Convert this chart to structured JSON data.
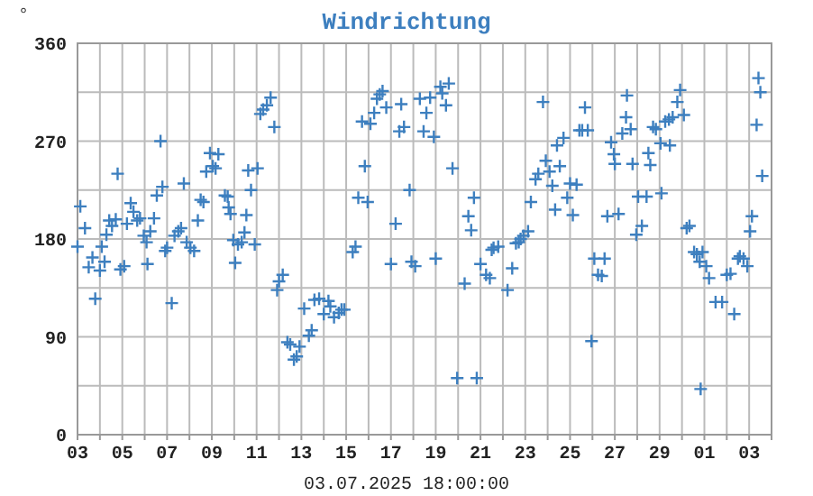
{
  "chart_data": {
    "type": "scatter",
    "title": "Windrichtung",
    "ylabel": "°",
    "annotations": [
      "03.07.2025 18:00:00"
    ],
    "marker": "cross",
    "grid": true,
    "xlim": [
      "2025-06-03",
      "2025-07-04"
    ],
    "xticks": [
      {
        "value": "2025-06-03",
        "label": "03"
      },
      {
        "value": "2025-06-04",
        "label": null
      },
      {
        "value": "2025-06-05",
        "label": "05"
      },
      {
        "value": "2025-06-06",
        "label": null
      },
      {
        "value": "2025-06-07",
        "label": "07"
      },
      {
        "value": "2025-06-08",
        "label": null
      },
      {
        "value": "2025-06-09",
        "label": "09"
      },
      {
        "value": "2025-06-10",
        "label": null
      },
      {
        "value": "2025-06-11",
        "label": "11"
      },
      {
        "value": "2025-06-12",
        "label": null
      },
      {
        "value": "2025-06-13",
        "label": "13"
      },
      {
        "value": "2025-06-14",
        "label": null
      },
      {
        "value": "2025-06-15",
        "label": "15"
      },
      {
        "value": "2025-06-16",
        "label": null
      },
      {
        "value": "2025-06-17",
        "label": "17"
      },
      {
        "value": "2025-06-18",
        "label": null
      },
      {
        "value": "2025-06-19",
        "label": "19"
      },
      {
        "value": "2025-06-20",
        "label": null
      },
      {
        "value": "2025-06-21",
        "label": "21"
      },
      {
        "value": "2025-06-22",
        "label": null
      },
      {
        "value": "2025-06-23",
        "label": "23"
      },
      {
        "value": "2025-06-24",
        "label": null
      },
      {
        "value": "2025-06-25",
        "label": "25"
      },
      {
        "value": "2025-06-26",
        "label": null
      },
      {
        "value": "2025-06-27",
        "label": "27"
      },
      {
        "value": "2025-06-28",
        "label": null
      },
      {
        "value": "2025-06-29",
        "label": "29"
      },
      {
        "value": "2025-06-30",
        "label": null
      },
      {
        "value": "2025-07-01",
        "label": "01"
      },
      {
        "value": "2025-07-02",
        "label": null
      },
      {
        "value": "2025-07-03",
        "label": "03"
      },
      {
        "value": "2025-07-04",
        "label": null
      }
    ],
    "ylim": [
      0,
      360
    ],
    "yticks": [
      0,
      {
        "value": 45,
        "label": null
      },
      90,
      {
        "value": 135,
        "label": null
      },
      180,
      {
        "value": 225,
        "label": null
      },
      270,
      {
        "value": 315,
        "label": null
      },
      360
    ],
    "series": [
      {
        "color": "#3d7fbf",
        "x": [
          "2025-06-03T00:00",
          "2025-06-03T03:00",
          "2025-06-03T08:00",
          "2025-06-03T12:00",
          "2025-06-03T16:00",
          "2025-06-03T19:00",
          "2025-06-04T00:00",
          "2025-06-04T02:00",
          "2025-06-04T05:00",
          "2025-06-04T07:00",
          "2025-06-04T10:00",
          "2025-06-04T13:00",
          "2025-06-04T17:00",
          "2025-06-04T19:00",
          "2025-06-04T22:00",
          "2025-06-05T02:00",
          "2025-06-05T05:00",
          "2025-06-05T09:00",
          "2025-06-05T12:00",
          "2025-06-05T16:00",
          "2025-06-05T19:00",
          "2025-06-05T23:00",
          "2025-06-06T02:00",
          "2025-06-06T03:00",
          "2025-06-06T06:00",
          "2025-06-06T10:00",
          "2025-06-06T13:00",
          "2025-06-06T17:00",
          "2025-06-06T19:00",
          "2025-06-06T22:00",
          "2025-06-07T00:00",
          "2025-06-07T05:00",
          "2025-06-07T08:00",
          "2025-06-07T12:00",
          "2025-06-07T15:00",
          "2025-06-07T18:00",
          "2025-06-07T21:00",
          "2025-06-08T01:00",
          "2025-06-08T05:00",
          "2025-06-08T09:00",
          "2025-06-08T12:00",
          "2025-06-08T15:00",
          "2025-06-08T18:00",
          "2025-06-08T22:00",
          "2025-06-09T01:00",
          "2025-06-09T04:00",
          "2025-06-09T07:00",
          "2025-06-09T14:00",
          "2025-06-09T17:00",
          "2025-06-09T18:00",
          "2025-06-09T20:00",
          "2025-06-09T23:00",
          "2025-06-10T01:00",
          "2025-06-10T04:00",
          "2025-06-10T08:00",
          "2025-06-10T11:00",
          "2025-06-10T13:00",
          "2025-06-10T15:00",
          "2025-06-10T18:00",
          "2025-06-10T22:00",
          "2025-06-11T01:00",
          "2025-06-11T04:00",
          "2025-06-11T07:00",
          "2025-06-11T11:00",
          "2025-06-11T15:00",
          "2025-06-11T19:00",
          "2025-06-11T22:00",
          "2025-06-12T00:00",
          "2025-06-12T04:00",
          "2025-06-12T09:00",
          "2025-06-12T12:00",
          "2025-06-12T16:00",
          "2025-06-12T19:00",
          "2025-06-12T22:00",
          "2025-06-13T03:00",
          "2025-06-13T08:00",
          "2025-06-13T11:00",
          "2025-06-13T14:00",
          "2025-06-13T19:00",
          "2025-06-14T00:00",
          "2025-06-14T05:00",
          "2025-06-14T07:00",
          "2025-06-14T11:00",
          "2025-06-14T16:00",
          "2025-06-14T19:00",
          "2025-06-14T22:00",
          "2025-06-15T07:00",
          "2025-06-15T10:00",
          "2025-06-15T13:00",
          "2025-06-15T17:00",
          "2025-06-15T20:00",
          "2025-06-15T23:00",
          "2025-06-16T02:00",
          "2025-06-16T06:00",
          "2025-06-16T09:00",
          "2025-06-16T12:00",
          "2025-06-16T15:00",
          "2025-06-16T19:00",
          "2025-06-17T00:00",
          "2025-06-17T05:00",
          "2025-06-17T09:00",
          "2025-06-17T11:00",
          "2025-06-17T14:00",
          "2025-06-17T20:00",
          "2025-06-17T22:00",
          "2025-06-18T02:00",
          "2025-06-18T07:00",
          "2025-06-18T11:00",
          "2025-06-18T14:00",
          "2025-06-18T18:00",
          "2025-06-18T22:00",
          "2025-06-19T00:00",
          "2025-06-19T05:00",
          "2025-06-19T07:00",
          "2025-06-19T11:00",
          "2025-06-19T14:00",
          "2025-06-19T18:00",
          "2025-06-19T23:00",
          "2025-06-20T07:00",
          "2025-06-20T11:00",
          "2025-06-20T14:00",
          "2025-06-20T17:00",
          "2025-06-20T20:00",
          "2025-06-21T00:00",
          "2025-06-21T06:00",
          "2025-06-21T10:00",
          "2025-06-21T12:00",
          "2025-06-21T14:00",
          "2025-06-21T19:00",
          "2025-06-22T05:00",
          "2025-06-22T10:00",
          "2025-06-22T14:00",
          "2025-06-22T17:00",
          "2025-06-22T19:00",
          "2025-06-22T22:00",
          "2025-06-23T03:00",
          "2025-06-23T06:00",
          "2025-06-23T11:00",
          "2025-06-23T14:00",
          "2025-06-23T19:00",
          "2025-06-23T22:00",
          "2025-06-24T02:00",
          "2025-06-24T05:00",
          "2025-06-24T08:00",
          "2025-06-24T10:00",
          "2025-06-24T13:00",
          "2025-06-24T17:00",
          "2025-06-24T21:00",
          "2025-06-25T00:00",
          "2025-06-25T03:00",
          "2025-06-25T07:00",
          "2025-06-25T10:00",
          "2025-06-25T13:00",
          "2025-06-25T16:00",
          "2025-06-25T19:00",
          "2025-06-25T23:00",
          "2025-06-26T02:00",
          "2025-06-26T06:00",
          "2025-06-26T10:00",
          "2025-06-26T13:00",
          "2025-06-26T16:00",
          "2025-06-26T20:00",
          "2025-06-26T23:00",
          "2025-06-27T00:00",
          "2025-06-27T04:00",
          "2025-06-27T08:00",
          "2025-06-27T12:00",
          "2025-06-27T13:00",
          "2025-06-27T17:00",
          "2025-06-27T19:00",
          "2025-06-27T23:00",
          "2025-06-28T01:00",
          "2025-06-28T05:00",
          "2025-06-28T10:00",
          "2025-06-28T12:00",
          "2025-06-28T14:00",
          "2025-06-28T17:00",
          "2025-06-28T20:00",
          "2025-06-29T01:00",
          "2025-06-29T02:00",
          "2025-06-29T06:00",
          "2025-06-29T10:00",
          "2025-06-29T11:00",
          "2025-06-29T14:00",
          "2025-06-29T19:00",
          "2025-06-29T22:00",
          "2025-06-30T02:00",
          "2025-06-30T05:00",
          "2025-06-30T08:00",
          "2025-06-30T13:00",
          "2025-06-30T16:00",
          "2025-06-30T19:00",
          "2025-06-30T20:00",
          "2025-06-30T22:00",
          "2025-07-01T02:00",
          "2025-07-01T05:00",
          "2025-07-01T12:00",
          "2025-07-01T19:00",
          "2025-07-02T00:00",
          "2025-07-02T04:00",
          "2025-07-02T08:00",
          "2025-07-02T12:00",
          "2025-07-02T14:00",
          "2025-07-02T18:00",
          "2025-07-02T22:00",
          "2025-07-03T01:00",
          "2025-07-03T03:00",
          "2025-07-03T08:00",
          "2025-07-03T10:00",
          "2025-07-03T12:00",
          "2025-07-03T14:00"
        ],
        "values": [
          173,
          210,
          190,
          154,
          163,
          125,
          151,
          173,
          159,
          184,
          197,
          192,
          198,
          240,
          152,
          155,
          194,
          213,
          205,
          197,
          199,
          183,
          177,
          157,
          187,
          199,
          220,
          270,
          228,
          169,
          172,
          121,
          183,
          187,
          190,
          231,
          177,
          172,
          169,
          197,
          216,
          214,
          242,
          259,
          247,
          245,
          258,
          220,
          219,
          209,
          203,
          179,
          158,
          175,
          177,
          186,
          202,
          243,
          225,
          175,
          245,
          295,
          299,
          303,
          310,
          283,
          133,
          141,
          147,
          85,
          83,
          69,
          72,
          81,
          116,
          91,
          96,
          124,
          125,
          111,
          123,
          118,
          108,
          112,
          115,
          115,
          168,
          173,
          218,
          288,
          247,
          214,
          286,
          296,
          309,
          313,
          316,
          301,
          157,
          194,
          279,
          304,
          283,
          225,
          159,
          155,
          309,
          279,
          296,
          310,
          274,
          162,
          320,
          314,
          303,
          323,
          245,
          52,
          139,
          201,
          188,
          218,
          52,
          157,
          147,
          144,
          170,
          172,
          173,
          133,
          153,
          176,
          177,
          180,
          183,
          187,
          214,
          235,
          240,
          306,
          252,
          242,
          229,
          207,
          266,
          247,
          273,
          218,
          231,
          202,
          230,
          280,
          280,
          301,
          280,
          86,
          162,
          147,
          146,
          162,
          201,
          269,
          258,
          249,
          203,
          277,
          292,
          312,
          281,
          249,
          184,
          219,
          192,
          219,
          259,
          248,
          283,
          281,
          268,
          222,
          288,
          290,
          266,
          292,
          306,
          317,
          294,
          190,
          192,
          168,
          166,
          159,
          42,
          168,
          155,
          144,
          122,
          122,
          147,
          148,
          111,
          162,
          164,
          162,
          155,
          187,
          201,
          285,
          328,
          315,
          238
        ]
      }
    ]
  }
}
